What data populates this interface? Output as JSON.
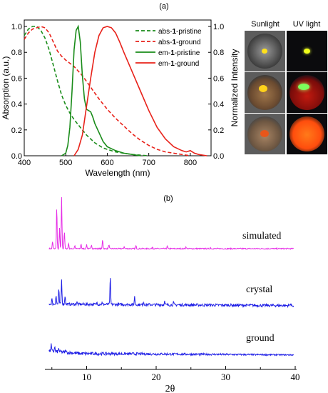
{
  "panel_a": {
    "label": "(a)",
    "photos": {
      "header_left": "Sunlight",
      "header_right": "UV light"
    }
  },
  "panel_b": {
    "label": "(b)"
  },
  "chart_data": [
    {
      "type": "line",
      "xlabel": "Wavelength (nm)",
      "ylabel_left": "Absorption (a.u.)",
      "ylabel_right": "Normalized Intensity",
      "xlim": [
        400,
        850
      ],
      "ylim": [
        0,
        1.05
      ],
      "xticks": [
        "400",
        "500",
        "600",
        "700",
        "800"
      ],
      "yticks_left": [
        "0.0",
        "0.2",
        "0.4",
        "0.6",
        "0.8",
        "1.0"
      ],
      "yticks_right": [
        "0.0",
        "0.2",
        "0.4",
        "0.6",
        "0.8",
        "1.0"
      ],
      "legend_position": "top-right",
      "series": [
        {
          "name": "abs-1-pristine",
          "name_prefix": "abs-",
          "name_bold": "1",
          "name_suffix": "-pristine",
          "color": "#1a8c1a",
          "dash": true,
          "x": [
            400,
            410,
            420,
            430,
            440,
            450,
            460,
            470,
            480,
            490,
            500,
            510,
            520,
            530,
            540,
            550,
            560,
            570,
            580,
            590,
            600,
            620,
            640,
            660,
            680,
            700
          ],
          "y": [
            0.93,
            0.98,
            1.0,
            1.0,
            0.97,
            0.91,
            0.82,
            0.7,
            0.58,
            0.47,
            0.39,
            0.33,
            0.28,
            0.24,
            0.2,
            0.16,
            0.13,
            0.1,
            0.08,
            0.06,
            0.05,
            0.03,
            0.02,
            0.01,
            0.005,
            0.0
          ]
        },
        {
          "name": "abs-1-ground",
          "name_prefix": "abs-",
          "name_bold": "1",
          "name_suffix": "-ground",
          "color": "#e8221a",
          "dash": true,
          "x": [
            400,
            410,
            420,
            430,
            440,
            450,
            460,
            470,
            480,
            490,
            500,
            520,
            540,
            560,
            580,
            600,
            620,
            640,
            660,
            680,
            700,
            720,
            740,
            760,
            780,
            800
          ],
          "y": [
            0.9,
            0.95,
            0.98,
            0.99,
            1.0,
            0.99,
            0.95,
            0.88,
            0.81,
            0.77,
            0.74,
            0.69,
            0.62,
            0.53,
            0.44,
            0.36,
            0.29,
            0.23,
            0.17,
            0.12,
            0.08,
            0.05,
            0.03,
            0.02,
            0.01,
            0.0
          ]
        },
        {
          "name": "em-1-pristine",
          "name_prefix": "em-",
          "name_bold": "1",
          "name_suffix": "-pristine",
          "color": "#1a8c1a",
          "dash": false,
          "x": [
            490,
            500,
            505,
            510,
            515,
            520,
            525,
            530,
            535,
            540,
            545,
            550,
            555,
            560,
            565,
            570,
            580,
            590,
            600,
            620,
            640,
            660,
            680
          ],
          "y": [
            0.0,
            0.02,
            0.08,
            0.22,
            0.5,
            0.82,
            0.97,
            1.0,
            0.88,
            0.62,
            0.44,
            0.36,
            0.35,
            0.34,
            0.3,
            0.25,
            0.18,
            0.11,
            0.07,
            0.04,
            0.02,
            0.01,
            0.0
          ]
        },
        {
          "name": "em-1-ground",
          "name_prefix": "em-",
          "name_bold": "1",
          "name_suffix": "-ground",
          "color": "#e8221a",
          "dash": false,
          "x": [
            520,
            530,
            540,
            550,
            560,
            570,
            580,
            590,
            600,
            610,
            620,
            630,
            640,
            660,
            680,
            700,
            720,
            740,
            760,
            780,
            790,
            800,
            810,
            820,
            840
          ],
          "y": [
            0.0,
            0.05,
            0.16,
            0.38,
            0.6,
            0.8,
            0.93,
            0.99,
            1.0,
            0.99,
            0.95,
            0.88,
            0.8,
            0.65,
            0.5,
            0.35,
            0.22,
            0.13,
            0.07,
            0.04,
            0.03,
            0.04,
            0.02,
            0.01,
            0.0
          ]
        }
      ]
    },
    {
      "type": "line",
      "xlabel": "2θ",
      "xlim": [
        4,
        40
      ],
      "xticks": [
        "10",
        "20",
        "30",
        "40"
      ],
      "series": [
        {
          "name": "simulated",
          "color": "#e62ee6",
          "baseline": 0.0,
          "noise": 0.02,
          "peaks": [
            [
              5.1,
              0.12
            ],
            [
              5.7,
              0.72
            ],
            [
              6.1,
              0.35
            ],
            [
              6.4,
              0.88
            ],
            [
              6.8,
              0.3
            ],
            [
              7.4,
              0.1
            ],
            [
              8.3,
              0.05
            ],
            [
              9.2,
              0.08
            ],
            [
              10.0,
              0.07
            ],
            [
              10.7,
              0.07
            ],
            [
              12.3,
              0.16
            ],
            [
              13.2,
              0.07
            ],
            [
              15.4,
              0.04
            ],
            [
              17.1,
              0.05
            ],
            [
              19.5,
              0.03
            ],
            [
              21.6,
              0.04
            ],
            [
              24.3,
              0.03
            ],
            [
              27.8,
              0.02
            ]
          ]
        },
        {
          "name": "crystal",
          "color": "#1f1fe6",
          "baseline": 0.04,
          "noise": 0.06,
          "peaks": [
            [
              5.0,
              0.12
            ],
            [
              5.6,
              0.2
            ],
            [
              6.0,
              0.33
            ],
            [
              6.4,
              0.55
            ],
            [
              6.9,
              0.2
            ],
            [
              8.6,
              0.05
            ],
            [
              11.5,
              0.05
            ],
            [
              12.2,
              0.04
            ],
            [
              13.4,
              0.62
            ],
            [
              16.9,
              0.18
            ],
            [
              18.2,
              0.06
            ],
            [
              21.2,
              0.08
            ],
            [
              22.5,
              0.05
            ],
            [
              39.3,
              0.05
            ]
          ]
        },
        {
          "name": "ground",
          "color": "#1f1fe6",
          "baseline": 0.05,
          "noise": 0.08,
          "peaks": [
            [
              4.9,
              0.18
            ],
            [
              5.4,
              0.14
            ],
            [
              6.0,
              0.1
            ],
            [
              7.0,
              0.06
            ]
          ]
        }
      ]
    }
  ]
}
